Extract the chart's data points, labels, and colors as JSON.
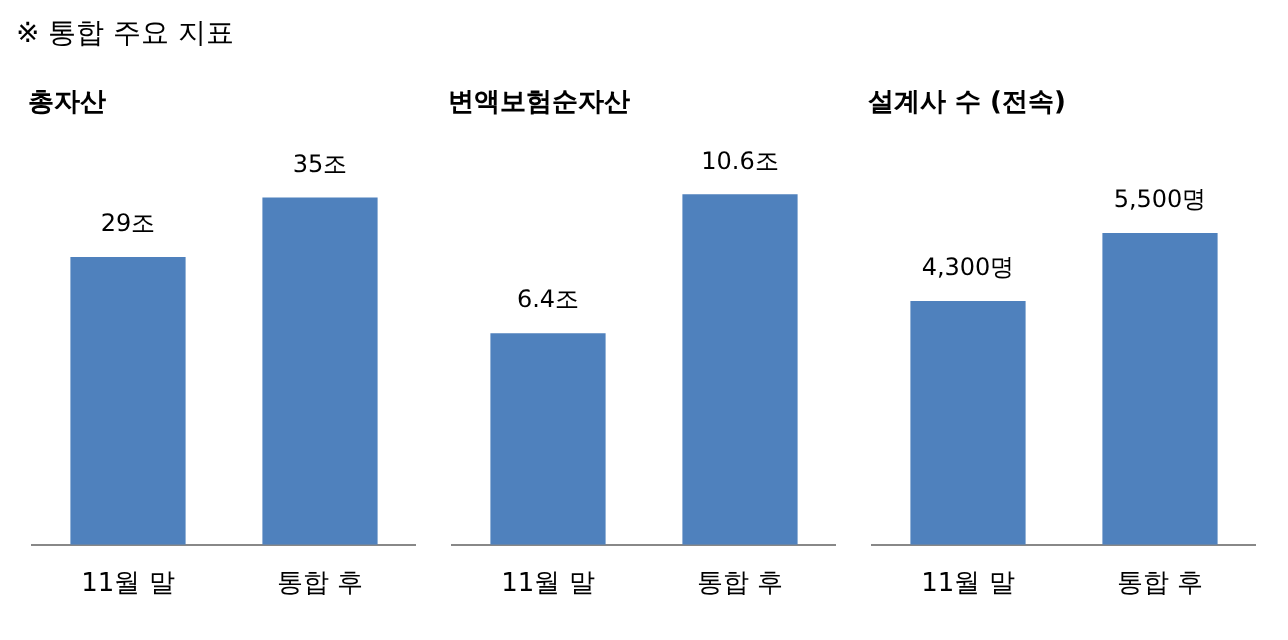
{
  "chart_data": [
    {
      "type": "bar",
      "title": "총자산",
      "annotations": [
        "※ 통합 주요 지표"
      ],
      "categories": [
        "11월 말",
        "통합 후"
      ],
      "values": [
        29,
        35
      ],
      "value_labels": [
        "29조",
        "35조"
      ],
      "color": "#4f81bd",
      "relative": false,
      "grid": false,
      "legend": false
    },
    {
      "type": "bar",
      "title": "변액보험순자산",
      "categories": [
        "11월 말",
        "통합 후"
      ],
      "values": [
        6.4,
        10.6
      ],
      "value_labels": [
        "6.4조",
        "10.6조"
      ],
      "color": "#4f81bd",
      "grid": false,
      "legend": false
    },
    {
      "type": "bar",
      "title": "설계사 수 (전속)",
      "categories": [
        "11월 말",
        "통합 후"
      ],
      "values": [
        4300,
        5500
      ],
      "value_labels": [
        "4,300명",
        "5,500명"
      ],
      "color": "#4f81bd",
      "grid": false,
      "legend": false
    }
  ]
}
